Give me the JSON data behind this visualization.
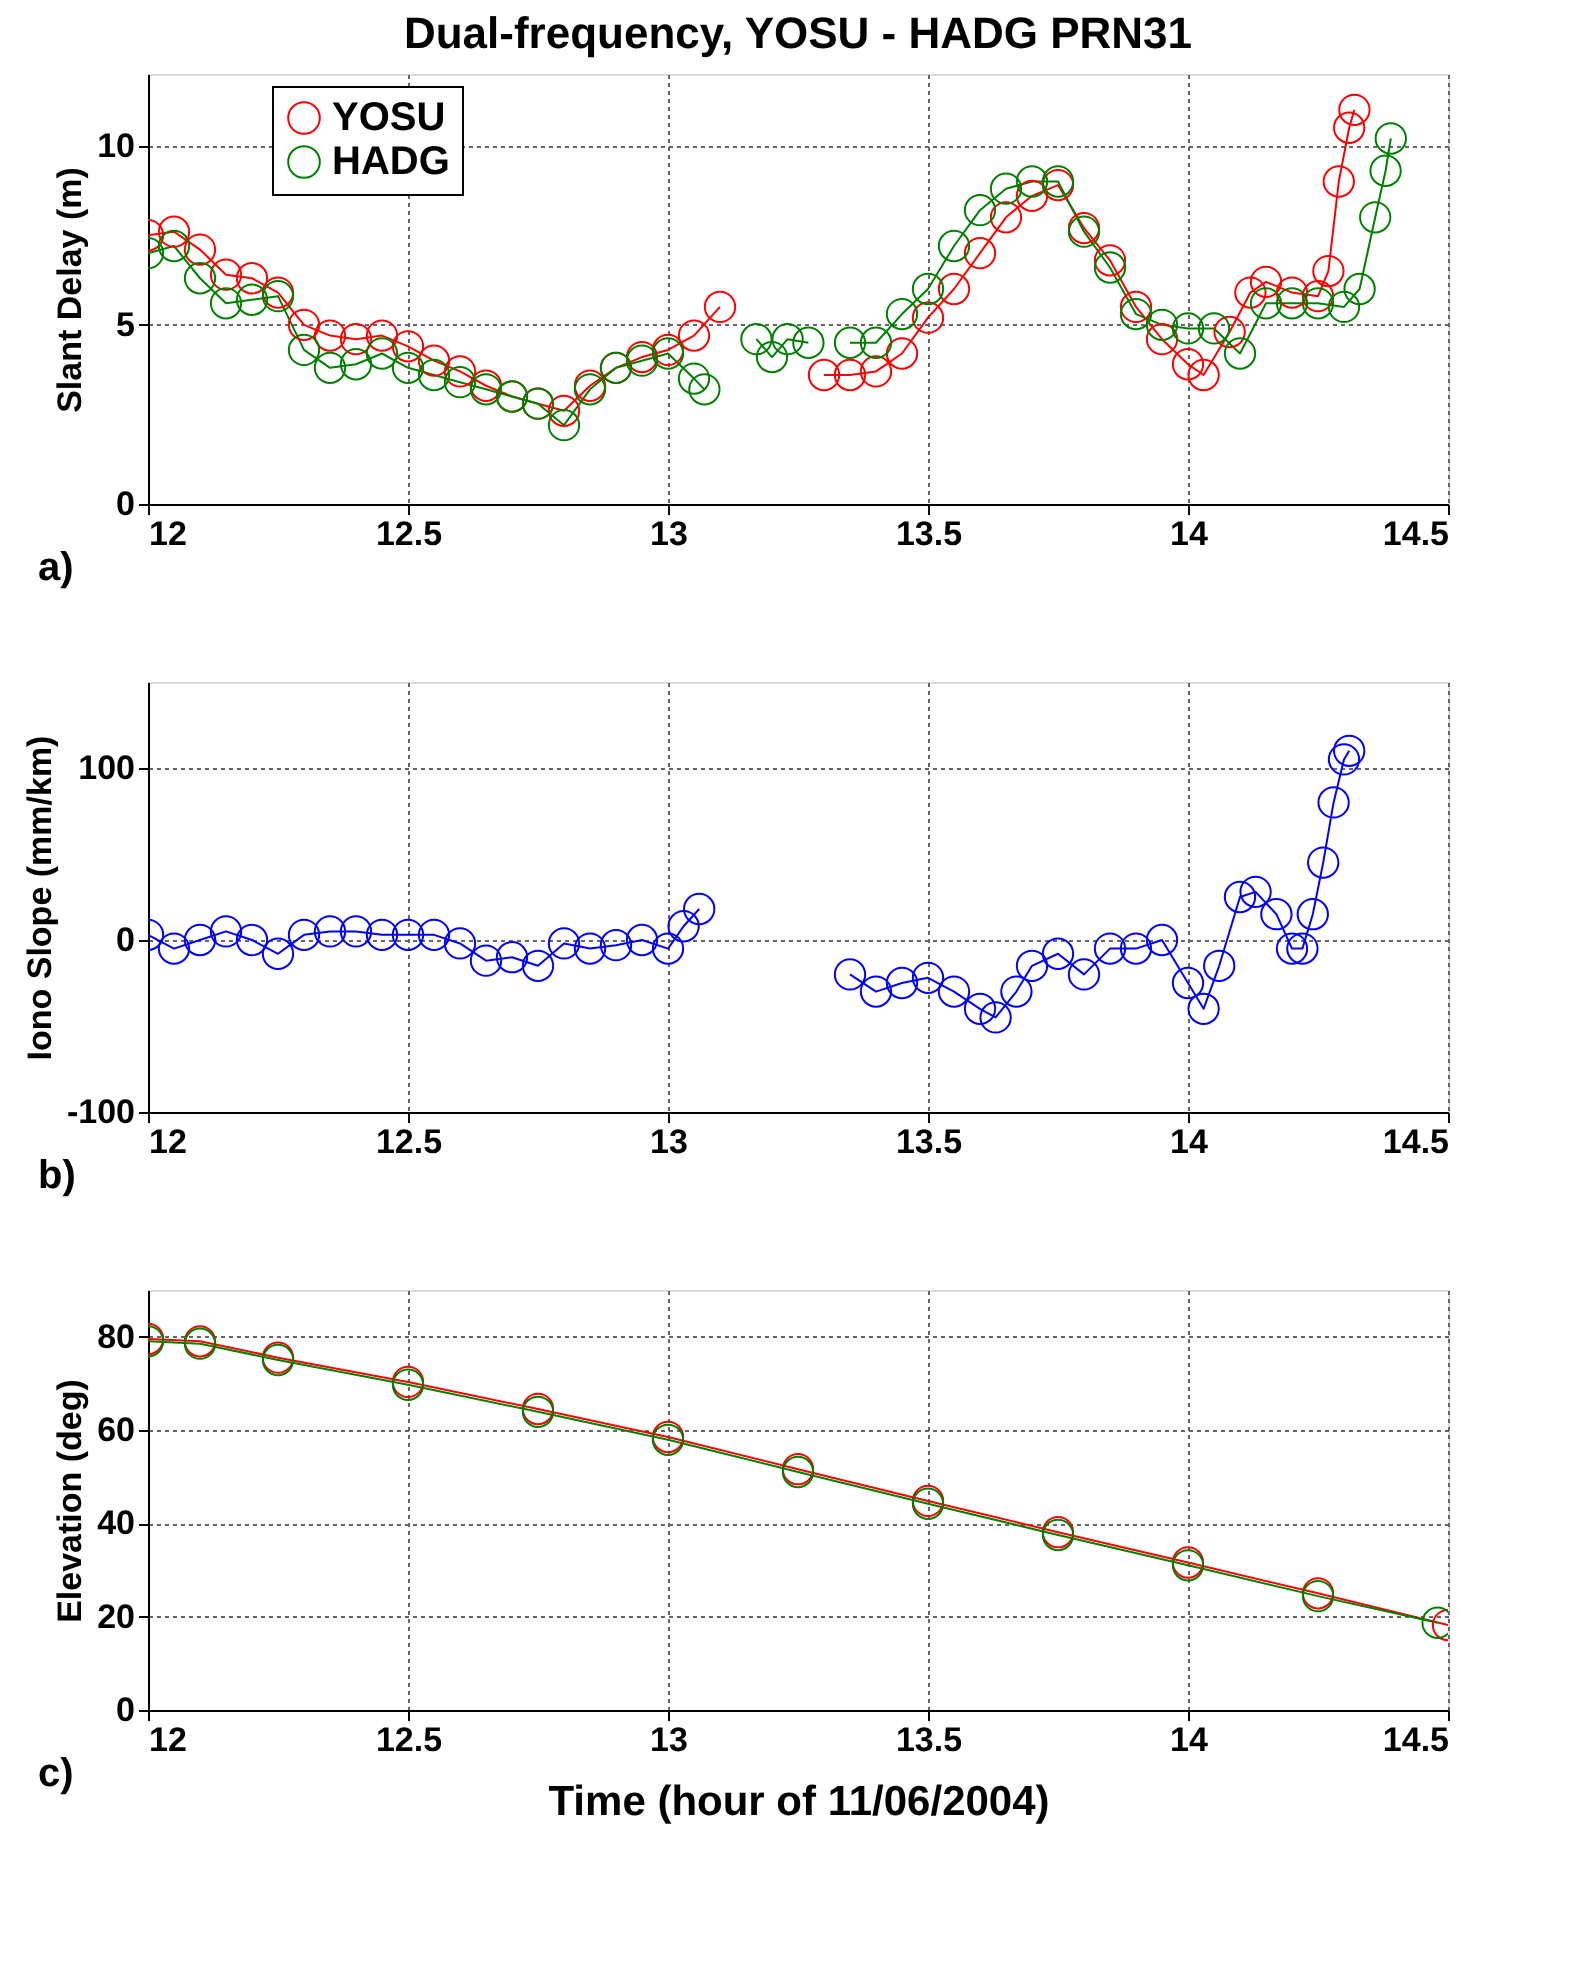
{
  "chart_data": [
    {
      "type": "line",
      "title": "Dual-frequency, YOSU - HADG PRN31",
      "ylabel": "Slant Delay (m)",
      "annotations": [
        "a)"
      ],
      "marker": "circle",
      "line_style": "solid",
      "grid": true,
      "legend": "top left",
      "xlim": [
        12,
        14.5
      ],
      "xticks": [
        12,
        12.5,
        13,
        13.5,
        14,
        14.5
      ],
      "ylim": [
        0,
        12
      ],
      "yticks": [
        0,
        5,
        10
      ],
      "series": [
        {
          "name": "YOSU",
          "color": "#ff0000",
          "x": [
            12.0,
            12.05,
            12.1,
            12.15,
            12.2,
            12.25,
            12.3,
            12.35,
            12.4,
            12.45,
            12.5,
            12.55,
            12.6,
            12.65,
            12.7,
            12.75,
            12.8,
            12.85,
            12.9,
            12.95,
            13.0,
            13.05,
            13.1,
            13.2,
            13.3,
            13.35,
            13.4,
            13.45,
            13.5,
            13.55,
            13.6,
            13.65,
            13.7,
            13.75,
            13.8,
            13.85,
            13.9,
            13.95,
            14.0,
            14.03,
            14.08,
            14.12,
            14.15,
            14.2,
            14.25,
            14.27,
            14.29,
            14.31,
            14.32
          ],
          "values": [
            7.5,
            7.6,
            7.1,
            6.4,
            6.3,
            5.9,
            5.0,
            4.7,
            4.6,
            4.7,
            4.4,
            4.0,
            3.7,
            3.3,
            3.0,
            2.8,
            2.6,
            3.3,
            3.8,
            4.1,
            4.3,
            4.7,
            5.5,
            null,
            3.6,
            3.6,
            3.7,
            4.2,
            5.2,
            6.0,
            7.0,
            8.0,
            8.6,
            8.9,
            7.7,
            6.8,
            5.5,
            4.6,
            3.9,
            3.6,
            4.8,
            5.9,
            6.2,
            5.9,
            5.8,
            6.5,
            9.0,
            10.5,
            11.0
          ]
        },
        {
          "name": "HADG",
          "color": "#008000",
          "x": [
            12.0,
            12.05,
            12.1,
            12.15,
            12.2,
            12.25,
            12.3,
            12.35,
            12.4,
            12.45,
            12.5,
            12.55,
            12.6,
            12.65,
            12.7,
            12.75,
            12.8,
            12.85,
            12.9,
            12.95,
            13.0,
            13.05,
            13.07,
            13.12,
            13.17,
            13.2,
            13.23,
            13.27,
            13.3,
            13.35,
            13.4,
            13.45,
            13.5,
            13.55,
            13.6,
            13.65,
            13.7,
            13.75,
            13.8,
            13.85,
            13.9,
            13.95,
            14.0,
            14.05,
            14.1,
            14.15,
            14.2,
            14.25,
            14.3,
            14.33,
            14.36,
            14.38,
            14.39
          ],
          "values": [
            7.0,
            7.2,
            6.3,
            5.6,
            5.7,
            5.8,
            4.3,
            3.8,
            3.9,
            4.2,
            3.8,
            3.6,
            3.4,
            3.2,
            3.0,
            2.8,
            2.2,
            3.2,
            3.8,
            4.0,
            4.2,
            3.5,
            3.2,
            null,
            4.6,
            4.1,
            4.6,
            4.5,
            null,
            4.5,
            4.5,
            5.3,
            6.0,
            7.2,
            8.2,
            8.8,
            9.0,
            9.0,
            7.6,
            6.6,
            5.3,
            5.0,
            4.9,
            4.9,
            4.2,
            5.6,
            5.6,
            5.6,
            5.5,
            6.0,
            8.0,
            9.3,
            10.2
          ]
        }
      ]
    },
    {
      "type": "line",
      "ylabel": "Iono Slope (mm/km)",
      "annotations": [
        "b)"
      ],
      "marker": "circle",
      "line_style": "solid",
      "grid": true,
      "xlim": [
        12,
        14.5
      ],
      "xticks": [
        12,
        12.5,
        13,
        13.5,
        14,
        14.5
      ],
      "ylim": [
        -100,
        150
      ],
      "yticks": [
        -100,
        0,
        100
      ],
      "series": [
        {
          "color": "#0000ff",
          "x": [
            12.0,
            12.05,
            12.1,
            12.15,
            12.2,
            12.25,
            12.3,
            12.35,
            12.4,
            12.45,
            12.5,
            12.55,
            12.6,
            12.65,
            12.7,
            12.75,
            12.8,
            12.85,
            12.9,
            12.95,
            13.0,
            13.03,
            13.06,
            13.2,
            13.35,
            13.4,
            13.45,
            13.5,
            13.55,
            13.6,
            13.63,
            13.67,
            13.7,
            13.75,
            13.8,
            13.85,
            13.9,
            13.95,
            14.0,
            14.03,
            14.06,
            14.1,
            14.13,
            14.17,
            14.2,
            14.22,
            14.24,
            14.26,
            14.28,
            14.3,
            14.31
          ],
          "values": [
            3,
            -5,
            0,
            5,
            0,
            -8,
            3,
            5,
            5,
            3,
            3,
            3,
            -2,
            -12,
            -10,
            -15,
            -2,
            -5,
            -3,
            0,
            -5,
            8,
            18,
            null,
            -20,
            -30,
            -25,
            -22,
            -30,
            -40,
            -45,
            -30,
            -15,
            -8,
            -20,
            -5,
            -5,
            0,
            -25,
            -40,
            -15,
            25,
            28,
            15,
            -5,
            -5,
            15,
            45,
            80,
            105,
            110
          ]
        }
      ]
    },
    {
      "type": "line",
      "ylabel": "Elevation (deg)",
      "xlabel": "Time (hour of 11/06/2004)",
      "annotations": [
        "c)"
      ],
      "marker": "circle",
      "line_style": "solid",
      "grid": true,
      "xlim": [
        12,
        14.5
      ],
      "xticks": [
        12,
        12.5,
        13,
        13.5,
        14,
        14.5
      ],
      "ylim": [
        0,
        90
      ],
      "yticks": [
        0,
        20,
        40,
        60,
        80
      ],
      "series": [
        {
          "color": "#ff0000",
          "x": [
            12.0,
            12.1,
            12.25,
            12.5,
            12.75,
            13.0,
            13.25,
            13.5,
            13.75,
            14.0,
            14.25,
            14.5
          ],
          "values": [
            79.5,
            79,
            75.5,
            70.3,
            64.5,
            58.5,
            51.6,
            44.8,
            38.1,
            31.6,
            25,
            18.2
          ]
        },
        {
          "color": "#008000",
          "x": [
            12.0,
            12.1,
            12.25,
            12.5,
            12.75,
            13.0,
            13.25,
            13.5,
            13.75,
            14.0,
            14.25,
            14.48
          ],
          "values": [
            79,
            78.5,
            75,
            69.7,
            63.9,
            57.9,
            51,
            44.2,
            37.5,
            31,
            24.4,
            18.7
          ]
        }
      ]
    }
  ]
}
